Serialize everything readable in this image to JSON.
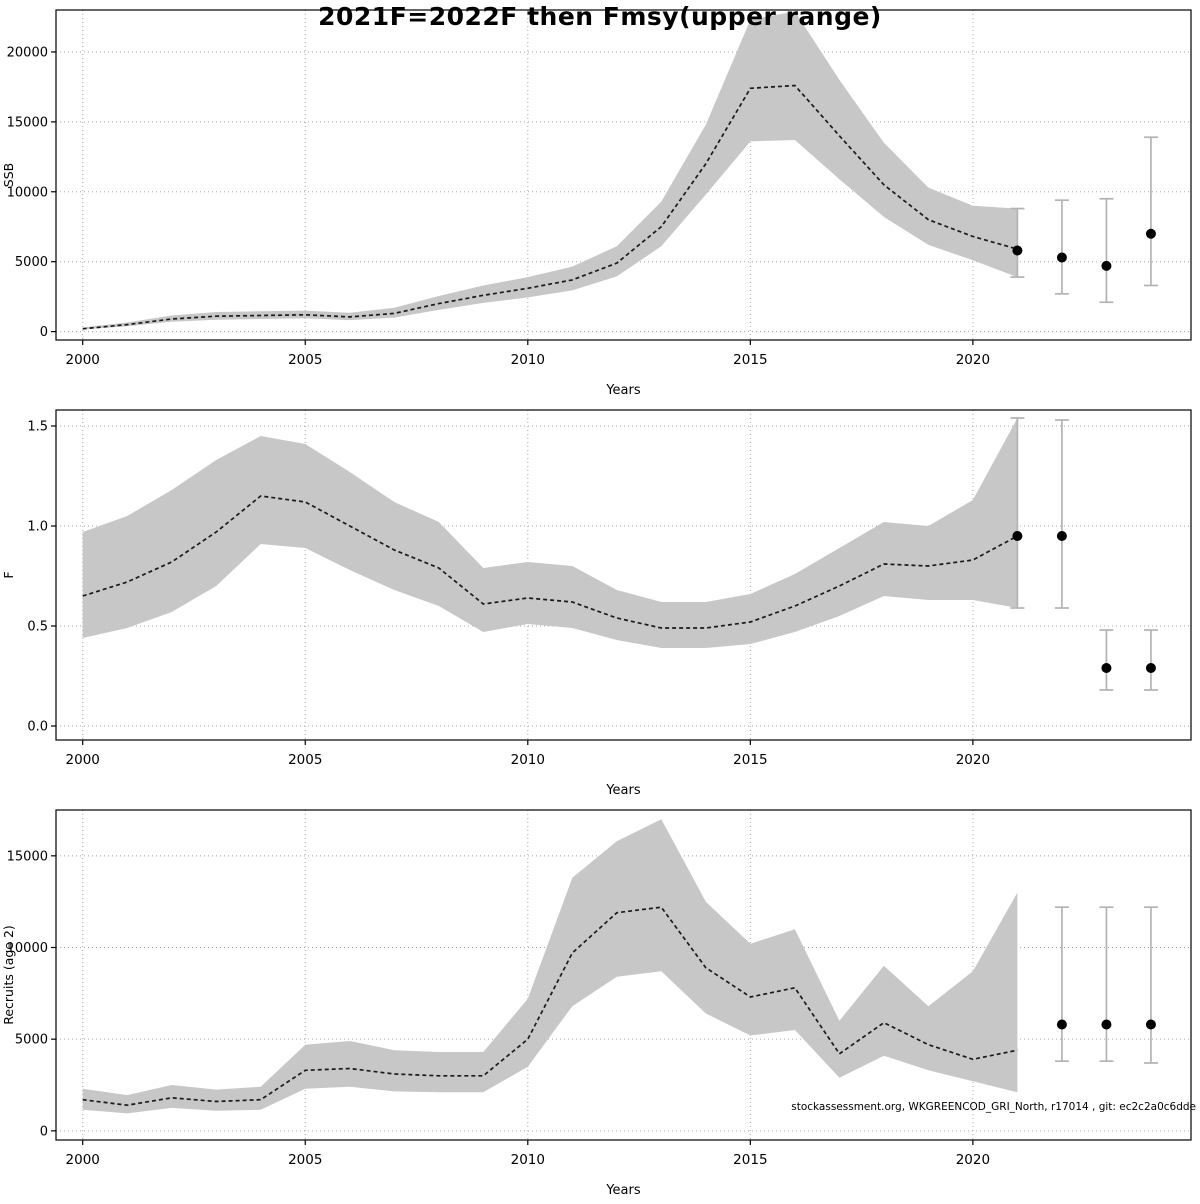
{
  "title": "2021F=2022F then Fmsy(upper range)",
  "footer": "stockassessment.org, WKGREENCOD_GRI_North, r17014 , git: ec2c2a0c6dde",
  "colors": {
    "band": "#c4c4c4",
    "line": "#1a1a1a",
    "errorbar": "#b3b3b3",
    "dot": "#000000",
    "grid": "#a8a8a8",
    "axis": "#000000"
  },
  "chart_data": [
    {
      "name": "ssb",
      "type": "line",
      "title": "",
      "xlabel": "Years",
      "ylabel": "SSB",
      "xlim": [
        1999.4,
        2024.9
      ],
      "ylim": [
        -600,
        23000
      ],
      "xticks": [
        2000,
        2005,
        2010,
        2015,
        2020
      ],
      "xtick_labels": [
        "2000",
        "2005",
        "2010",
        "2015",
        "2020"
      ],
      "yticks": [
        0,
        5000,
        10000,
        15000,
        20000
      ],
      "ytick_labels": [
        "0",
        "5000",
        "10000",
        "15000",
        "20000"
      ],
      "grid": true,
      "x": [
        2000,
        2001,
        2002,
        2003,
        2004,
        2005,
        2006,
        2007,
        2008,
        2009,
        2010,
        2011,
        2012,
        2013,
        2014,
        2015,
        2016,
        2017,
        2018,
        2019,
        2020,
        2021
      ],
      "median": [
        200,
        500,
        900,
        1100,
        1150,
        1200,
        1050,
        1300,
        2000,
        2600,
        3100,
        3700,
        4900,
        7500,
        12000,
        17400,
        17600,
        14000,
        10500,
        8000,
        6800,
        5900
      ],
      "lower": [
        150,
        380,
        700,
        850,
        900,
        950,
        820,
        1000,
        1550,
        2050,
        2450,
        2950,
        3950,
        6100,
        9800,
        13600,
        13700,
        10900,
        8200,
        6200,
        5100,
        3900
      ],
      "upper": [
        300,
        650,
        1150,
        1400,
        1450,
        1500,
        1350,
        1700,
        2550,
        3300,
        3900,
        4650,
        6100,
        9300,
        14800,
        22300,
        22900,
        18000,
        13500,
        10300,
        9000,
        8800
      ],
      "forecast": {
        "x": [
          2021,
          2022,
          2023,
          2024
        ],
        "y": [
          5800,
          5300,
          4700,
          7000
        ],
        "lo": [
          3900,
          2700,
          2100,
          3300
        ],
        "hi": [
          8800,
          9400,
          9500,
          13900
        ]
      }
    },
    {
      "name": "f",
      "type": "line",
      "title": "",
      "xlabel": "Years",
      "ylabel": "F",
      "xlim": [
        1999.4,
        2024.9
      ],
      "ylim": [
        -0.07,
        1.58
      ],
      "xticks": [
        2000,
        2005,
        2010,
        2015,
        2020
      ],
      "xtick_labels": [
        "2000",
        "2005",
        "2010",
        "2015",
        "2020"
      ],
      "yticks": [
        0.0,
        0.5,
        1.0,
        1.5
      ],
      "ytick_labels": [
        "0.0",
        "0.5",
        "1.0",
        "1.5"
      ],
      "grid": true,
      "x": [
        2000,
        2001,
        2002,
        2003,
        2004,
        2005,
        2006,
        2007,
        2008,
        2009,
        2010,
        2011,
        2012,
        2013,
        2014,
        2015,
        2016,
        2017,
        2018,
        2019,
        2020,
        2021
      ],
      "median": [
        0.65,
        0.72,
        0.82,
        0.97,
        1.15,
        1.12,
        1.0,
        0.88,
        0.79,
        0.61,
        0.64,
        0.62,
        0.54,
        0.49,
        0.49,
        0.52,
        0.6,
        0.7,
        0.81,
        0.8,
        0.83,
        0.95
      ],
      "lower": [
        0.44,
        0.49,
        0.57,
        0.7,
        0.91,
        0.89,
        0.78,
        0.68,
        0.6,
        0.47,
        0.51,
        0.49,
        0.43,
        0.39,
        0.39,
        0.41,
        0.47,
        0.55,
        0.65,
        0.63,
        0.63,
        0.59
      ],
      "upper": [
        0.97,
        1.05,
        1.18,
        1.33,
        1.45,
        1.41,
        1.27,
        1.12,
        1.02,
        0.79,
        0.82,
        0.8,
        0.68,
        0.62,
        0.62,
        0.66,
        0.76,
        0.89,
        1.02,
        1.0,
        1.13,
        1.54
      ],
      "forecast": {
        "x": [
          2021,
          2022,
          2023,
          2024
        ],
        "y": [
          0.95,
          0.95,
          0.29,
          0.29
        ],
        "lo": [
          0.59,
          0.59,
          0.18,
          0.18
        ],
        "hi": [
          1.54,
          1.53,
          0.48,
          0.48
        ]
      }
    },
    {
      "name": "recruits",
      "type": "line",
      "title": "",
      "xlabel": "Years",
      "ylabel": "Recruits (age 2)",
      "xlim": [
        1999.4,
        2024.9
      ],
      "ylim": [
        -500,
        17500
      ],
      "xticks": [
        2000,
        2005,
        2010,
        2015,
        2020
      ],
      "xtick_labels": [
        "2000",
        "2005",
        "2010",
        "2015",
        "2020"
      ],
      "yticks": [
        0,
        5000,
        10000,
        15000
      ],
      "ytick_labels": [
        "0",
        "5000",
        "10000",
        "15000"
      ],
      "grid": true,
      "x": [
        2000,
        2001,
        2002,
        2003,
        2004,
        2005,
        2006,
        2007,
        2008,
        2009,
        2010,
        2011,
        2012,
        2013,
        2014,
        2015,
        2016,
        2017,
        2018,
        2019,
        2020,
        2021
      ],
      "median": [
        1700,
        1400,
        1800,
        1600,
        1700,
        3300,
        3400,
        3100,
        3000,
        3000,
        5000,
        9700,
        11900,
        12200,
        8900,
        7300,
        7800,
        4200,
        5900,
        4700,
        3900,
        4400
      ],
      "lower": [
        1150,
        950,
        1250,
        1100,
        1150,
        2300,
        2400,
        2150,
        2100,
        2100,
        3500,
        6800,
        8400,
        8700,
        6400,
        5200,
        5500,
        2900,
        4100,
        3300,
        2700,
        2100
      ],
      "upper": [
        2300,
        1950,
        2500,
        2250,
        2400,
        4700,
        4900,
        4400,
        4300,
        4300,
        7200,
        13800,
        15800,
        17000,
        12500,
        10200,
        11000,
        6000,
        9000,
        6800,
        8700,
        13000
      ],
      "forecast": {
        "x": [
          2022,
          2023,
          2024
        ],
        "y": [
          5800,
          5800,
          5800
        ],
        "lo": [
          3800,
          3800,
          3700
        ],
        "hi": [
          12200,
          12200,
          12200
        ]
      }
    }
  ]
}
